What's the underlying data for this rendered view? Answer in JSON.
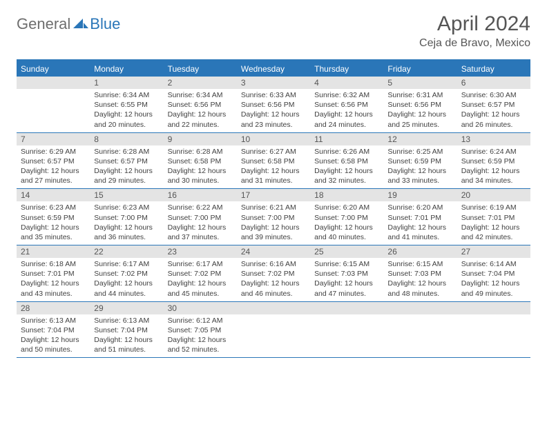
{
  "logo": {
    "part1": "General",
    "part2": "Blue"
  },
  "title": "April 2024",
  "location": "Ceja de Bravo, Mexico",
  "colors": {
    "brand": "#2a76b8",
    "header_text": "#ffffff",
    "daynum_bg": "#e4e4e4",
    "text": "#404040"
  },
  "day_names": [
    "Sunday",
    "Monday",
    "Tuesday",
    "Wednesday",
    "Thursday",
    "Friday",
    "Saturday"
  ],
  "weeks": [
    {
      "days": [
        {
          "num": "",
          "sunrise": "",
          "sunset": "",
          "daylight": ""
        },
        {
          "num": "1",
          "sunrise": "Sunrise: 6:34 AM",
          "sunset": "Sunset: 6:55 PM",
          "daylight": "Daylight: 12 hours and 20 minutes."
        },
        {
          "num": "2",
          "sunrise": "Sunrise: 6:34 AM",
          "sunset": "Sunset: 6:56 PM",
          "daylight": "Daylight: 12 hours and 22 minutes."
        },
        {
          "num": "3",
          "sunrise": "Sunrise: 6:33 AM",
          "sunset": "Sunset: 6:56 PM",
          "daylight": "Daylight: 12 hours and 23 minutes."
        },
        {
          "num": "4",
          "sunrise": "Sunrise: 6:32 AM",
          "sunset": "Sunset: 6:56 PM",
          "daylight": "Daylight: 12 hours and 24 minutes."
        },
        {
          "num": "5",
          "sunrise": "Sunrise: 6:31 AM",
          "sunset": "Sunset: 6:56 PM",
          "daylight": "Daylight: 12 hours and 25 minutes."
        },
        {
          "num": "6",
          "sunrise": "Sunrise: 6:30 AM",
          "sunset": "Sunset: 6:57 PM",
          "daylight": "Daylight: 12 hours and 26 minutes."
        }
      ]
    },
    {
      "days": [
        {
          "num": "7",
          "sunrise": "Sunrise: 6:29 AM",
          "sunset": "Sunset: 6:57 PM",
          "daylight": "Daylight: 12 hours and 27 minutes."
        },
        {
          "num": "8",
          "sunrise": "Sunrise: 6:28 AM",
          "sunset": "Sunset: 6:57 PM",
          "daylight": "Daylight: 12 hours and 29 minutes."
        },
        {
          "num": "9",
          "sunrise": "Sunrise: 6:28 AM",
          "sunset": "Sunset: 6:58 PM",
          "daylight": "Daylight: 12 hours and 30 minutes."
        },
        {
          "num": "10",
          "sunrise": "Sunrise: 6:27 AM",
          "sunset": "Sunset: 6:58 PM",
          "daylight": "Daylight: 12 hours and 31 minutes."
        },
        {
          "num": "11",
          "sunrise": "Sunrise: 6:26 AM",
          "sunset": "Sunset: 6:58 PM",
          "daylight": "Daylight: 12 hours and 32 minutes."
        },
        {
          "num": "12",
          "sunrise": "Sunrise: 6:25 AM",
          "sunset": "Sunset: 6:59 PM",
          "daylight": "Daylight: 12 hours and 33 minutes."
        },
        {
          "num": "13",
          "sunrise": "Sunrise: 6:24 AM",
          "sunset": "Sunset: 6:59 PM",
          "daylight": "Daylight: 12 hours and 34 minutes."
        }
      ]
    },
    {
      "days": [
        {
          "num": "14",
          "sunrise": "Sunrise: 6:23 AM",
          "sunset": "Sunset: 6:59 PM",
          "daylight": "Daylight: 12 hours and 35 minutes."
        },
        {
          "num": "15",
          "sunrise": "Sunrise: 6:23 AM",
          "sunset": "Sunset: 7:00 PM",
          "daylight": "Daylight: 12 hours and 36 minutes."
        },
        {
          "num": "16",
          "sunrise": "Sunrise: 6:22 AM",
          "sunset": "Sunset: 7:00 PM",
          "daylight": "Daylight: 12 hours and 37 minutes."
        },
        {
          "num": "17",
          "sunrise": "Sunrise: 6:21 AM",
          "sunset": "Sunset: 7:00 PM",
          "daylight": "Daylight: 12 hours and 39 minutes."
        },
        {
          "num": "18",
          "sunrise": "Sunrise: 6:20 AM",
          "sunset": "Sunset: 7:00 PM",
          "daylight": "Daylight: 12 hours and 40 minutes."
        },
        {
          "num": "19",
          "sunrise": "Sunrise: 6:20 AM",
          "sunset": "Sunset: 7:01 PM",
          "daylight": "Daylight: 12 hours and 41 minutes."
        },
        {
          "num": "20",
          "sunrise": "Sunrise: 6:19 AM",
          "sunset": "Sunset: 7:01 PM",
          "daylight": "Daylight: 12 hours and 42 minutes."
        }
      ]
    },
    {
      "days": [
        {
          "num": "21",
          "sunrise": "Sunrise: 6:18 AM",
          "sunset": "Sunset: 7:01 PM",
          "daylight": "Daylight: 12 hours and 43 minutes."
        },
        {
          "num": "22",
          "sunrise": "Sunrise: 6:17 AM",
          "sunset": "Sunset: 7:02 PM",
          "daylight": "Daylight: 12 hours and 44 minutes."
        },
        {
          "num": "23",
          "sunrise": "Sunrise: 6:17 AM",
          "sunset": "Sunset: 7:02 PM",
          "daylight": "Daylight: 12 hours and 45 minutes."
        },
        {
          "num": "24",
          "sunrise": "Sunrise: 6:16 AM",
          "sunset": "Sunset: 7:02 PM",
          "daylight": "Daylight: 12 hours and 46 minutes."
        },
        {
          "num": "25",
          "sunrise": "Sunrise: 6:15 AM",
          "sunset": "Sunset: 7:03 PM",
          "daylight": "Daylight: 12 hours and 47 minutes."
        },
        {
          "num": "26",
          "sunrise": "Sunrise: 6:15 AM",
          "sunset": "Sunset: 7:03 PM",
          "daylight": "Daylight: 12 hours and 48 minutes."
        },
        {
          "num": "27",
          "sunrise": "Sunrise: 6:14 AM",
          "sunset": "Sunset: 7:04 PM",
          "daylight": "Daylight: 12 hours and 49 minutes."
        }
      ]
    },
    {
      "days": [
        {
          "num": "28",
          "sunrise": "Sunrise: 6:13 AM",
          "sunset": "Sunset: 7:04 PM",
          "daylight": "Daylight: 12 hours and 50 minutes."
        },
        {
          "num": "29",
          "sunrise": "Sunrise: 6:13 AM",
          "sunset": "Sunset: 7:04 PM",
          "daylight": "Daylight: 12 hours and 51 minutes."
        },
        {
          "num": "30",
          "sunrise": "Sunrise: 6:12 AM",
          "sunset": "Sunset: 7:05 PM",
          "daylight": "Daylight: 12 hours and 52 minutes."
        },
        {
          "num": "",
          "sunrise": "",
          "sunset": "",
          "daylight": ""
        },
        {
          "num": "",
          "sunrise": "",
          "sunset": "",
          "daylight": ""
        },
        {
          "num": "",
          "sunrise": "",
          "sunset": "",
          "daylight": ""
        },
        {
          "num": "",
          "sunrise": "",
          "sunset": "",
          "daylight": ""
        }
      ]
    }
  ]
}
